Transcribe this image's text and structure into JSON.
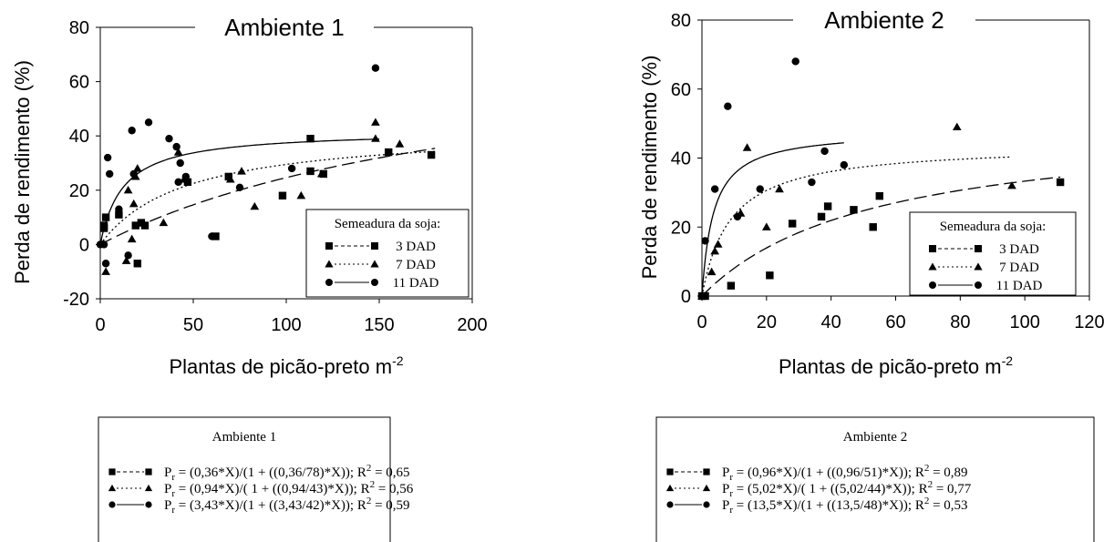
{
  "chart_data": [
    {
      "type": "scatter",
      "title": "Ambiente 1",
      "xlabel": "Plantas de picão-preto m",
      "xlabel_sup": "-2",
      "ylabel": "Perda de rendimento (%)",
      "xlim": [
        0,
        200
      ],
      "ylim": [
        -20,
        80
      ],
      "xticks": [
        "0",
        "50",
        "100",
        "150",
        "200"
      ],
      "yticks": [
        "-20",
        "0",
        "20",
        "40",
        "60",
        "80"
      ],
      "grid": false,
      "legend": {
        "position": "bottom-right",
        "title": "Semeadura da soja:",
        "entries": [
          "3 DAD",
          "7 DAD",
          "11 DAD"
        ]
      },
      "series": [
        {
          "name": "3 DAD",
          "marker": "square",
          "line": "dashed",
          "model": {
            "i": 0.36,
            "a": 78,
            "xmax": 180
          },
          "points": [
            [
              2,
              7
            ],
            [
              2,
              6
            ],
            [
              3,
              10
            ],
            [
              10,
              11
            ],
            [
              19,
              7
            ],
            [
              20,
              -7
            ],
            [
              22,
              8
            ],
            [
              24,
              7
            ],
            [
              47,
              23
            ],
            [
              62,
              3
            ],
            [
              69,
              25
            ],
            [
              98,
              18
            ],
            [
              113,
              39
            ],
            [
              113,
              27
            ],
            [
              120,
              26
            ],
            [
              155,
              34
            ],
            [
              178,
              33
            ]
          ]
        },
        {
          "name": "7 DAD",
          "marker": "triangle",
          "line": "dotted",
          "model": {
            "i": 0.94,
            "a": 43,
            "xmax": 180
          },
          "points": [
            [
              1,
              0
            ],
            [
              3,
              -10
            ],
            [
              14,
              -6
            ],
            [
              15,
              20
            ],
            [
              17,
              2
            ],
            [
              18,
              15
            ],
            [
              19,
              25
            ],
            [
              20,
              28
            ],
            [
              34,
              8
            ],
            [
              42,
              34
            ],
            [
              45,
              24
            ],
            [
              70,
              24
            ],
            [
              76,
              27
            ],
            [
              83,
              14
            ],
            [
              108,
              18
            ],
            [
              119,
              26
            ],
            [
              148,
              39
            ],
            [
              148,
              45
            ],
            [
              161,
              37
            ]
          ]
        },
        {
          "name": "11 DAD",
          "marker": "circle",
          "line": "solid",
          "model": {
            "i": 3.43,
            "a": 42,
            "xmax": 150
          },
          "points": [
            [
              0,
              0
            ],
            [
              2,
              0
            ],
            [
              3,
              -7
            ],
            [
              4,
              32
            ],
            [
              5,
              26
            ],
            [
              10,
              13
            ],
            [
              15,
              -4
            ],
            [
              17,
              42
            ],
            [
              18,
              26
            ],
            [
              26,
              45
            ],
            [
              37,
              39
            ],
            [
              41,
              36
            ],
            [
              42,
              23
            ],
            [
              43,
              30
            ],
            [
              46,
              25
            ],
            [
              60,
              3
            ],
            [
              75,
              21
            ],
            [
              103,
              28
            ],
            [
              148,
              65
            ]
          ]
        }
      ],
      "equations_box": {
        "title": "Ambiente 1",
        "lines": [
          {
            "marker": "square",
            "style": "dashed",
            "lhs": "P",
            "sub": "r",
            "rhs": " = (0,36*X)/(1 + ((0,36/78)*X));  R",
            "sup": "2",
            "tail": " = 0,65"
          },
          {
            "marker": "triangle",
            "style": "dotted",
            "lhs": "P",
            "sub": "r",
            "rhs": " = (0,94*X)/( 1 + ((0,94/43)*X)); R",
            "sup": "2",
            "tail": " = 0,56"
          },
          {
            "marker": "circle",
            "style": "solid",
            "lhs": "P",
            "sub": "r",
            "rhs": " = (3,43*X)/(1 + ((3,43/42)*X));  R",
            "sup": "2",
            "tail": " = 0,59"
          }
        ]
      }
    },
    {
      "type": "scatter",
      "title": "Ambiente 2",
      "xlabel": "Plantas de picão-preto m",
      "xlabel_sup": "-2",
      "ylabel": "Perda de rendimento (%)",
      "xlim": [
        0,
        120
      ],
      "ylim": [
        0,
        80
      ],
      "xticks": [
        "0",
        "20",
        "40",
        "60",
        "80",
        "100",
        "120"
      ],
      "yticks": [
        "0",
        "20",
        "40",
        "60",
        "80"
      ],
      "grid": false,
      "legend": {
        "position": "bottom-right",
        "title": "Semeadura da soja:",
        "entries": [
          "3 DAD",
          "7 DAD",
          "11 DAD"
        ]
      },
      "series": [
        {
          "name": "3 DAD",
          "marker": "square",
          "line": "dashed",
          "model": {
            "i": 0.96,
            "a": 51,
            "xmax": 111
          },
          "points": [
            [
              0,
              0
            ],
            [
              1,
              0
            ],
            [
              9,
              3
            ],
            [
              21,
              6
            ],
            [
              28,
              21
            ],
            [
              37,
              23
            ],
            [
              39,
              26
            ],
            [
              47,
              25
            ],
            [
              53,
              20
            ],
            [
              55,
              29
            ],
            [
              111,
              33
            ]
          ]
        },
        {
          "name": "7 DAD",
          "marker": "triangle",
          "line": "dotted",
          "model": {
            "i": 5.02,
            "a": 44,
            "xmax": 96
          },
          "points": [
            [
              0,
              0
            ],
            [
              3,
              7
            ],
            [
              4,
              13
            ],
            [
              5,
              15
            ],
            [
              12,
              24
            ],
            [
              14,
              43
            ],
            [
              20,
              20
            ],
            [
              24,
              31
            ],
            [
              79,
              49
            ],
            [
              96,
              32
            ]
          ]
        },
        {
          "name": "11 DAD",
          "marker": "circle",
          "line": "solid",
          "model": {
            "i": 13.5,
            "a": 48,
            "xmax": 44
          },
          "points": [
            [
              0,
              0
            ],
            [
              1,
              16
            ],
            [
              4,
              31
            ],
            [
              8,
              55
            ],
            [
              11,
              23
            ],
            [
              18,
              31
            ],
            [
              29,
              68
            ],
            [
              34,
              33
            ],
            [
              38,
              42
            ],
            [
              44,
              38
            ]
          ]
        }
      ],
      "equations_box": {
        "title": "Ambiente 2",
        "lines": [
          {
            "marker": "square",
            "style": "dashed",
            "lhs": "P",
            "sub": "r",
            "rhs": " = (0,96*X)/(1 + ((0,96/51)*X));  R",
            "sup": "2",
            "tail": " = 0,89"
          },
          {
            "marker": "triangle",
            "style": "dotted",
            "lhs": "P",
            "sub": "r",
            "rhs": " = (5,02*X)/( 1 + ((5,02/44)*X)); R",
            "sup": "2",
            "tail": " = 0,77"
          },
          {
            "marker": "circle",
            "style": "solid",
            "lhs": "P",
            "sub": "r",
            "rhs": " = (13,5*X)/(1 + ((13,5/48)*X));  R",
            "sup": "2",
            "tail": " = 0,53"
          }
        ]
      }
    }
  ]
}
